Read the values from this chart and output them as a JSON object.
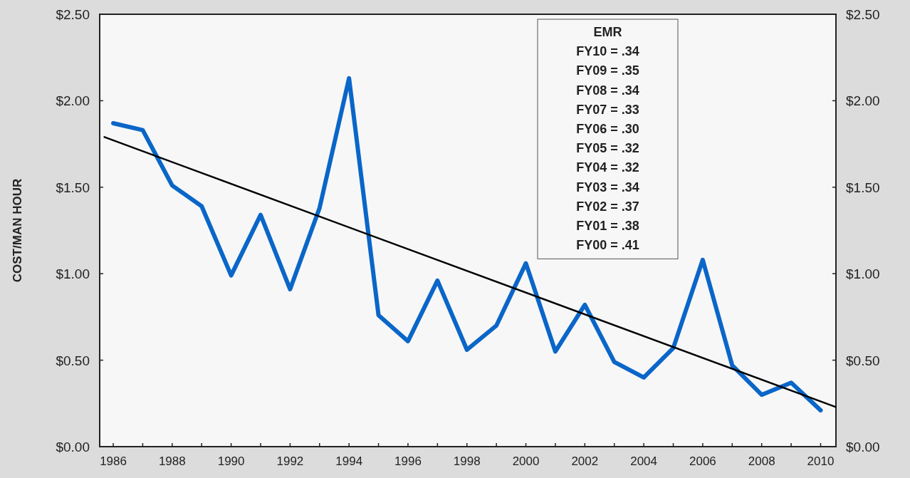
{
  "chart_data": {
    "type": "line",
    "ylabel": "COST/MAN HOUR",
    "xlim": [
      1985.54,
      2010.52
    ],
    "xticks": [
      1986,
      {
        "value": 1987,
        "label": null
      },
      1988,
      {
        "value": 1989,
        "label": null
      },
      1990,
      {
        "value": 1991,
        "label": null
      },
      1992,
      {
        "value": 1993,
        "label": null
      },
      1994,
      {
        "value": 1995,
        "label": null
      },
      1996,
      {
        "value": 1997,
        "label": null
      },
      1998,
      {
        "value": 1999,
        "label": null
      },
      2000,
      {
        "value": 2001,
        "label": null
      },
      2002,
      {
        "value": 2003,
        "label": null
      },
      2004,
      {
        "value": 2005,
        "label": null
      },
      2006,
      {
        "value": 2007,
        "label": null
      },
      2008,
      {
        "value": 2009,
        "label": null
      },
      2010
    ],
    "ylim": [
      0,
      2.5
    ],
    "yticks": [
      {
        "value": 0,
        "label": "$0.00"
      },
      {
        "value": 0.5,
        "label": "$0.50"
      },
      {
        "value": 1,
        "label": "$1.00"
      },
      {
        "value": 1.5,
        "label": "$1.50"
      },
      {
        "value": 2,
        "label": "$2.00"
      },
      {
        "value": 2.5,
        "label": "$2.50"
      }
    ],
    "y2lim": [
      0,
      2.5
    ],
    "y2ticks": [
      {
        "value": 0,
        "label": "$0.00"
      },
      {
        "value": 0.5,
        "label": "$0.50"
      },
      {
        "value": 1,
        "label": "$1.00"
      },
      {
        "value": 1.5,
        "label": "$1.50"
      },
      {
        "value": 2,
        "label": "$2.00"
      },
      {
        "value": 2.5,
        "label": "$2.50"
      }
    ],
    "grid": false,
    "marker": "none",
    "line_style": "solid",
    "series": [
      {
        "color": "#0a66c8",
        "x": [
          1986,
          1987,
          1988,
          1989,
          1990,
          1991,
          1992,
          1993,
          1994,
          1995,
          1996,
          1997,
          1998,
          1999,
          2000,
          2001,
          2002,
          2003,
          2004,
          2005,
          2006,
          2007,
          2008,
          2009,
          2010
        ],
        "values": [
          1.87,
          1.83,
          1.51,
          1.39,
          0.99,
          1.34,
          0.91,
          1.38,
          2.13,
          0.76,
          0.61,
          0.96,
          0.56,
          0.7,
          1.06,
          0.55,
          0.82,
          0.49,
          0.4,
          0.57,
          1.08,
          0.47,
          0.3,
          0.37,
          0.21
        ]
      },
      {
        "type": "line",
        "color": "#000000",
        "x": [
          1985.7,
          2010.5
        ],
        "values": [
          1.79,
          0.23
        ]
      }
    ],
    "annotations": [
      "EMR",
      "FY10 = .34",
      "FY09 = .35",
      "FY08 = .34",
      "FY07 = .33",
      "FY06 = .30",
      "FY05 = .32",
      "FY04 = .32",
      "FY03 = .34",
      "FY02 = .37",
      "FY01 = .38",
      "FY00 = .41"
    ]
  }
}
